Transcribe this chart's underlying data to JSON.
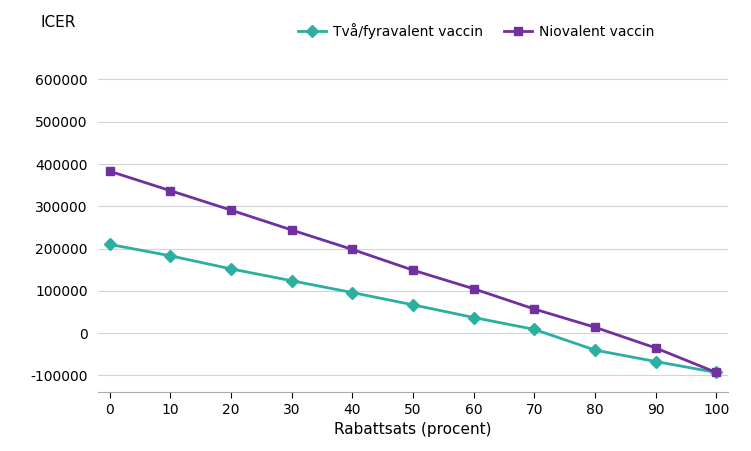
{
  "x": [
    0,
    10,
    20,
    30,
    40,
    50,
    60,
    70,
    80,
    90,
    100
  ],
  "tva_fyravalent": [
    210000,
    183000,
    152000,
    124000,
    96000,
    67000,
    37000,
    9000,
    -40000,
    -67000,
    -93000
  ],
  "niovalent": [
    383000,
    337000,
    291000,
    244000,
    198000,
    149000,
    105000,
    57000,
    14000,
    -35000,
    -93000
  ],
  "line1_color": "#2aafa0",
  "line2_color": "#7030a0",
  "line1_label": "Två/fyravalent vaccin",
  "line2_label": "Niovalent vaccin",
  "xlabel": "Rabattsats (procent)",
  "ylabel": "ICER",
  "ylim": [
    -140000,
    660000
  ],
  "yticks": [
    -100000,
    0,
    100000,
    200000,
    300000,
    400000,
    500000,
    600000
  ],
  "xticks": [
    0,
    10,
    20,
    30,
    40,
    50,
    60,
    70,
    80,
    90,
    100
  ],
  "marker1": "D",
  "marker2": "s",
  "background_color": "#ffffff",
  "grid_color": "#d3d3d3"
}
